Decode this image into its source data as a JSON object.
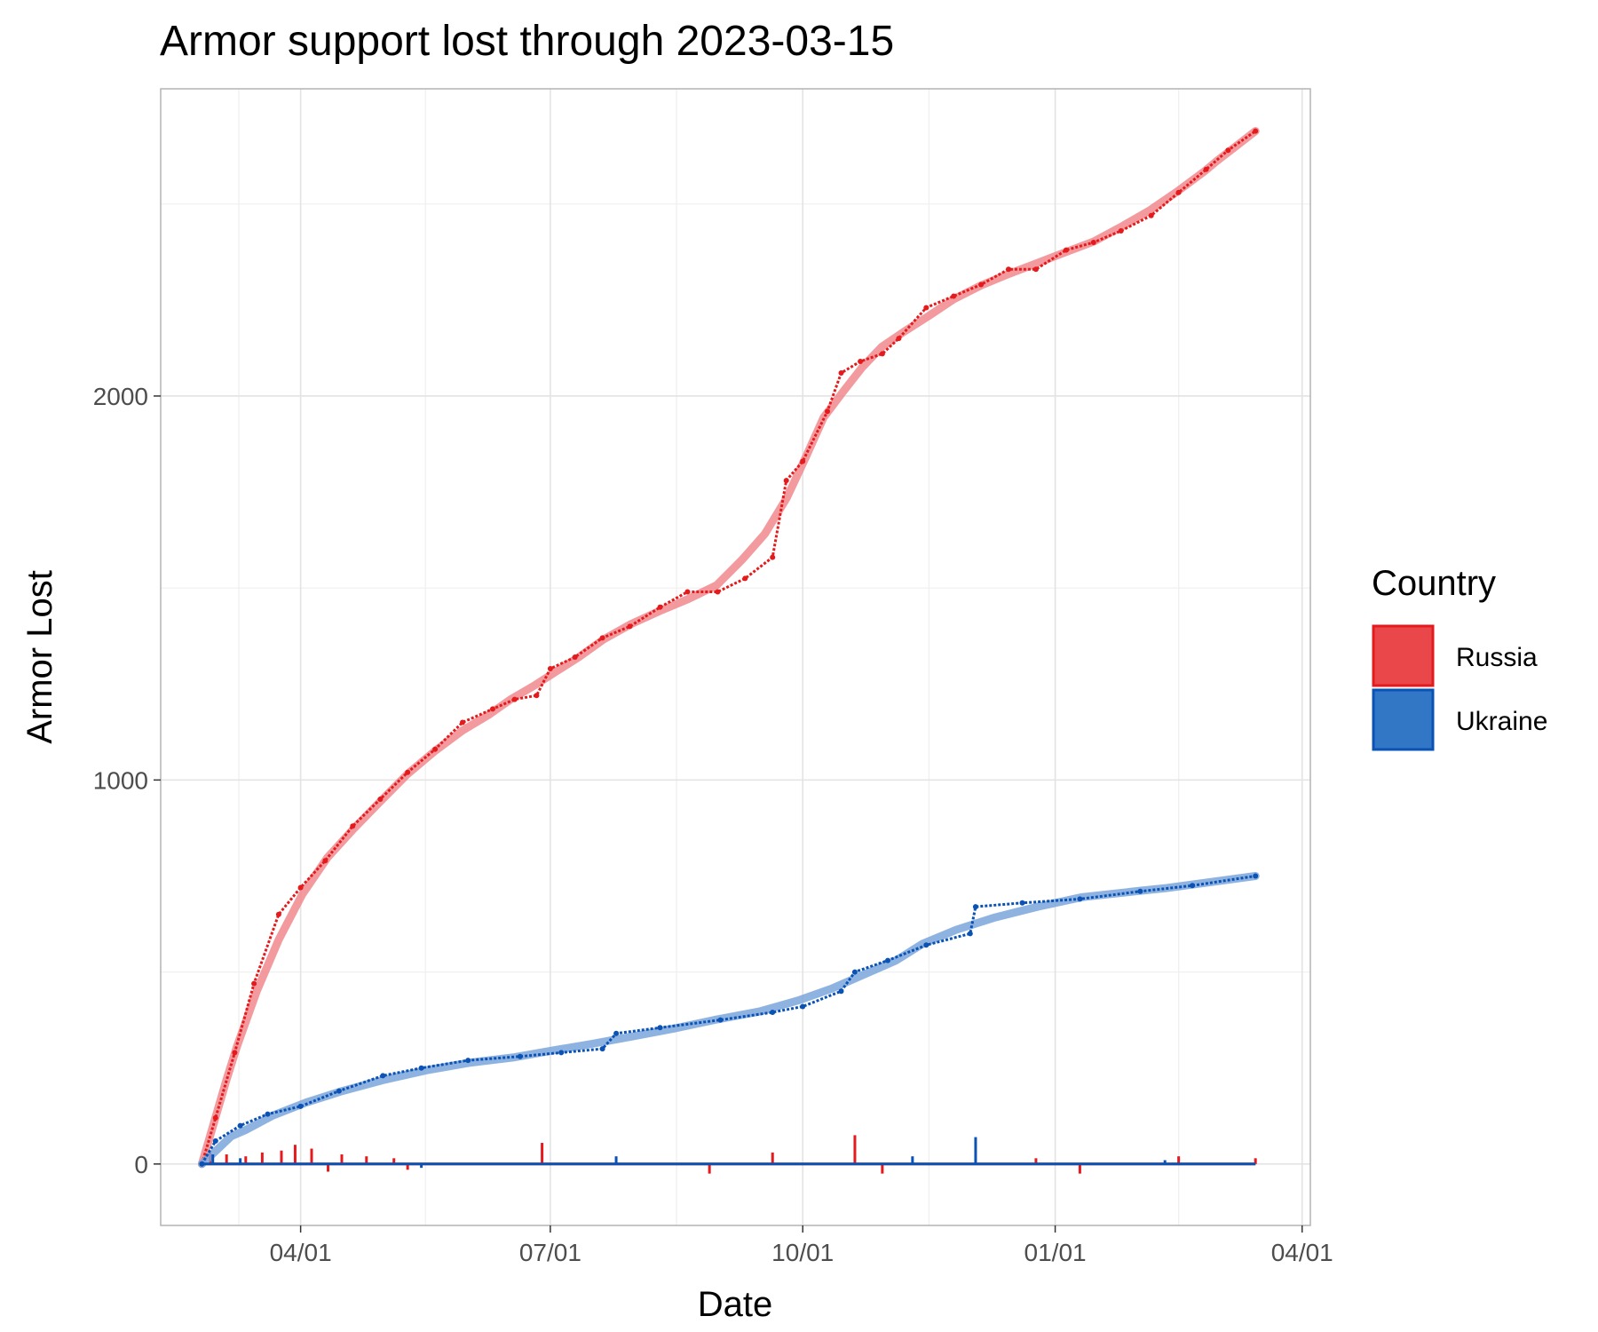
{
  "chart_data": {
    "type": "line",
    "title": "Armor support lost through 2023-03-15",
    "xlabel": "Date",
    "ylabel": "Armor Lost",
    "xlim": [
      "2022-02-09",
      "2023-04-04"
    ],
    "ylim": [
      -160,
      2800
    ],
    "x_ticks": [
      "2022-04-01",
      "2022-07-01",
      "2022-10-01",
      "2023-01-01",
      "2023-04-01"
    ],
    "x_tick_labels": [
      "04/01",
      "07/01",
      "10/01",
      "01/01",
      "04/01"
    ],
    "y_ticks": [
      0,
      1000,
      2000
    ],
    "y_tick_labels": [
      "0",
      "1000",
      "2000"
    ],
    "grid": true,
    "legend": {
      "title": "Country",
      "position": "right"
    },
    "series": [
      {
        "name": "Russia",
        "color": "#e41a1c",
        "fill": "#ea474a",
        "smooth_color": "#f0888d",
        "cumulative": [
          [
            "2022-02-24",
            0
          ],
          [
            "2022-03-01",
            120
          ],
          [
            "2022-03-08",
            290
          ],
          [
            "2022-03-15",
            470
          ],
          [
            "2022-03-24",
            650
          ],
          [
            "2022-04-01",
            720
          ],
          [
            "2022-04-10",
            790
          ],
          [
            "2022-04-20",
            880
          ],
          [
            "2022-04-30",
            950
          ],
          [
            "2022-05-10",
            1020
          ],
          [
            "2022-05-20",
            1080
          ],
          [
            "2022-05-30",
            1150
          ],
          [
            "2022-06-10",
            1185
          ],
          [
            "2022-06-18",
            1210
          ],
          [
            "2022-06-26",
            1220
          ],
          [
            "2022-07-01",
            1290
          ],
          [
            "2022-07-10",
            1320
          ],
          [
            "2022-07-20",
            1370
          ],
          [
            "2022-07-30",
            1400
          ],
          [
            "2022-08-10",
            1450
          ],
          [
            "2022-08-20",
            1490
          ],
          [
            "2022-08-31",
            1490
          ],
          [
            "2022-09-10",
            1525
          ],
          [
            "2022-09-20",
            1580
          ],
          [
            "2022-09-25",
            1780
          ],
          [
            "2022-10-01",
            1830
          ],
          [
            "2022-10-10",
            1960
          ],
          [
            "2022-10-15",
            2060
          ],
          [
            "2022-10-22",
            2090
          ],
          [
            "2022-10-30",
            2110
          ],
          [
            "2022-11-05",
            2150
          ],
          [
            "2022-11-15",
            2230
          ],
          [
            "2022-11-25",
            2260
          ],
          [
            "2022-12-05",
            2290
          ],
          [
            "2022-12-15",
            2330
          ],
          [
            "2022-12-25",
            2330
          ],
          [
            "2023-01-05",
            2380
          ],
          [
            "2023-01-15",
            2400
          ],
          [
            "2023-01-25",
            2430
          ],
          [
            "2023-02-05",
            2470
          ],
          [
            "2023-02-15",
            2530
          ],
          [
            "2023-02-25",
            2590
          ],
          [
            "2023-03-05",
            2640
          ],
          [
            "2023-03-15",
            2690
          ]
        ],
        "daily": [
          [
            "2022-02-27",
            30
          ],
          [
            "2022-03-05",
            25
          ],
          [
            "2022-03-12",
            20
          ],
          [
            "2022-03-18",
            30
          ],
          [
            "2022-03-25",
            35
          ],
          [
            "2022-03-30",
            50
          ],
          [
            "2022-04-05",
            40
          ],
          [
            "2022-04-11",
            -20
          ],
          [
            "2022-04-16",
            25
          ],
          [
            "2022-04-25",
            20
          ],
          [
            "2022-05-05",
            15
          ],
          [
            "2022-05-10",
            -15
          ],
          [
            "2022-06-28",
            55
          ],
          [
            "2022-08-28",
            -25
          ],
          [
            "2022-09-20",
            30
          ],
          [
            "2022-10-20",
            75
          ],
          [
            "2022-10-30",
            -25
          ],
          [
            "2022-12-25",
            15
          ],
          [
            "2023-01-10",
            -25
          ],
          [
            "2023-02-15",
            20
          ],
          [
            "2023-03-15",
            15
          ]
        ]
      },
      {
        "name": "Ukraine",
        "color": "#0b52b5",
        "fill": "#3276c6",
        "smooth_color": "#7aa6dc",
        "cumulative": [
          [
            "2022-02-24",
            0
          ],
          [
            "2022-03-01",
            60
          ],
          [
            "2022-03-10",
            100
          ],
          [
            "2022-03-20",
            130
          ],
          [
            "2022-04-01",
            150
          ],
          [
            "2022-04-15",
            190
          ],
          [
            "2022-05-01",
            230
          ],
          [
            "2022-05-15",
            250
          ],
          [
            "2022-06-01",
            270
          ],
          [
            "2022-06-20",
            280
          ],
          [
            "2022-07-05",
            290
          ],
          [
            "2022-07-20",
            300
          ],
          [
            "2022-07-25",
            340
          ],
          [
            "2022-08-10",
            355
          ],
          [
            "2022-09-01",
            375
          ],
          [
            "2022-09-20",
            395
          ],
          [
            "2022-10-01",
            410
          ],
          [
            "2022-10-15",
            450
          ],
          [
            "2022-10-20",
            500
          ],
          [
            "2022-11-01",
            530
          ],
          [
            "2022-11-15",
            570
          ],
          [
            "2022-12-01",
            600
          ],
          [
            "2022-12-03",
            670
          ],
          [
            "2022-12-20",
            680
          ],
          [
            "2023-01-10",
            690
          ],
          [
            "2023-02-01",
            710
          ],
          [
            "2023-02-20",
            725
          ],
          [
            "2023-03-15",
            750
          ]
        ],
        "daily": [
          [
            "2022-02-28",
            25
          ],
          [
            "2022-03-10",
            15
          ],
          [
            "2022-05-15",
            -10
          ],
          [
            "2022-07-25",
            20
          ],
          [
            "2022-11-10",
            20
          ],
          [
            "2022-12-03",
            70
          ],
          [
            "2023-02-10",
            10
          ]
        ]
      }
    ]
  }
}
